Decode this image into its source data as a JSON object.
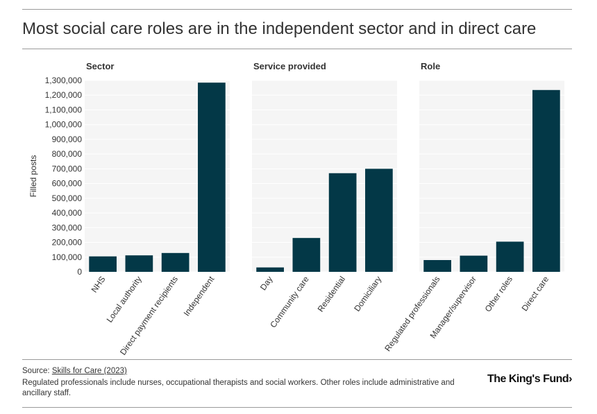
{
  "title": "Most social care roles are in the independent sector and in direct care",
  "source_prefix": "Source: ",
  "source_link": "Skills for Care (2023)",
  "note": "Regulated professionals include nurses, occupational therapists and social workers. Other roles include administrative and ancillary staff.",
  "logo": "The King's Fund",
  "logo_arrow": "›",
  "colors": {
    "bar": "#033847",
    "panel_bg": "#f5f5f5",
    "grid": "#ffffff",
    "text": "#333333"
  },
  "chart_data": {
    "type": "bar",
    "ylabel": "Filled posts",
    "ylim": [
      0,
      1300000
    ],
    "yticks": [
      0,
      100000,
      200000,
      300000,
      400000,
      500000,
      600000,
      700000,
      800000,
      900000,
      1000000,
      1100000,
      1200000,
      1300000
    ],
    "ytick_labels": [
      "0",
      "100,000",
      "200,000",
      "300,000",
      "400,000",
      "500,000",
      "600,000",
      "700,000",
      "800,000",
      "900,000",
      "1,000,000",
      "1,100,000",
      "1,200,000",
      "1,300,000"
    ],
    "panels": [
      {
        "title": "Sector",
        "categories": [
          "NHS",
          "Local authority",
          "Direct payment recipients",
          "Independent"
        ],
        "values": [
          105000,
          112000,
          128000,
          1285000
        ]
      },
      {
        "title": "Service provided",
        "categories": [
          "Day",
          "Community care",
          "Residential",
          "Domiciliary"
        ],
        "values": [
          30000,
          230000,
          670000,
          700000
        ]
      },
      {
        "title": "Role",
        "categories": [
          "Regulated professionals",
          "Manager/supervisor",
          "Other roles",
          "Direct care"
        ],
        "values": [
          80000,
          110000,
          205000,
          1235000
        ]
      }
    ]
  }
}
